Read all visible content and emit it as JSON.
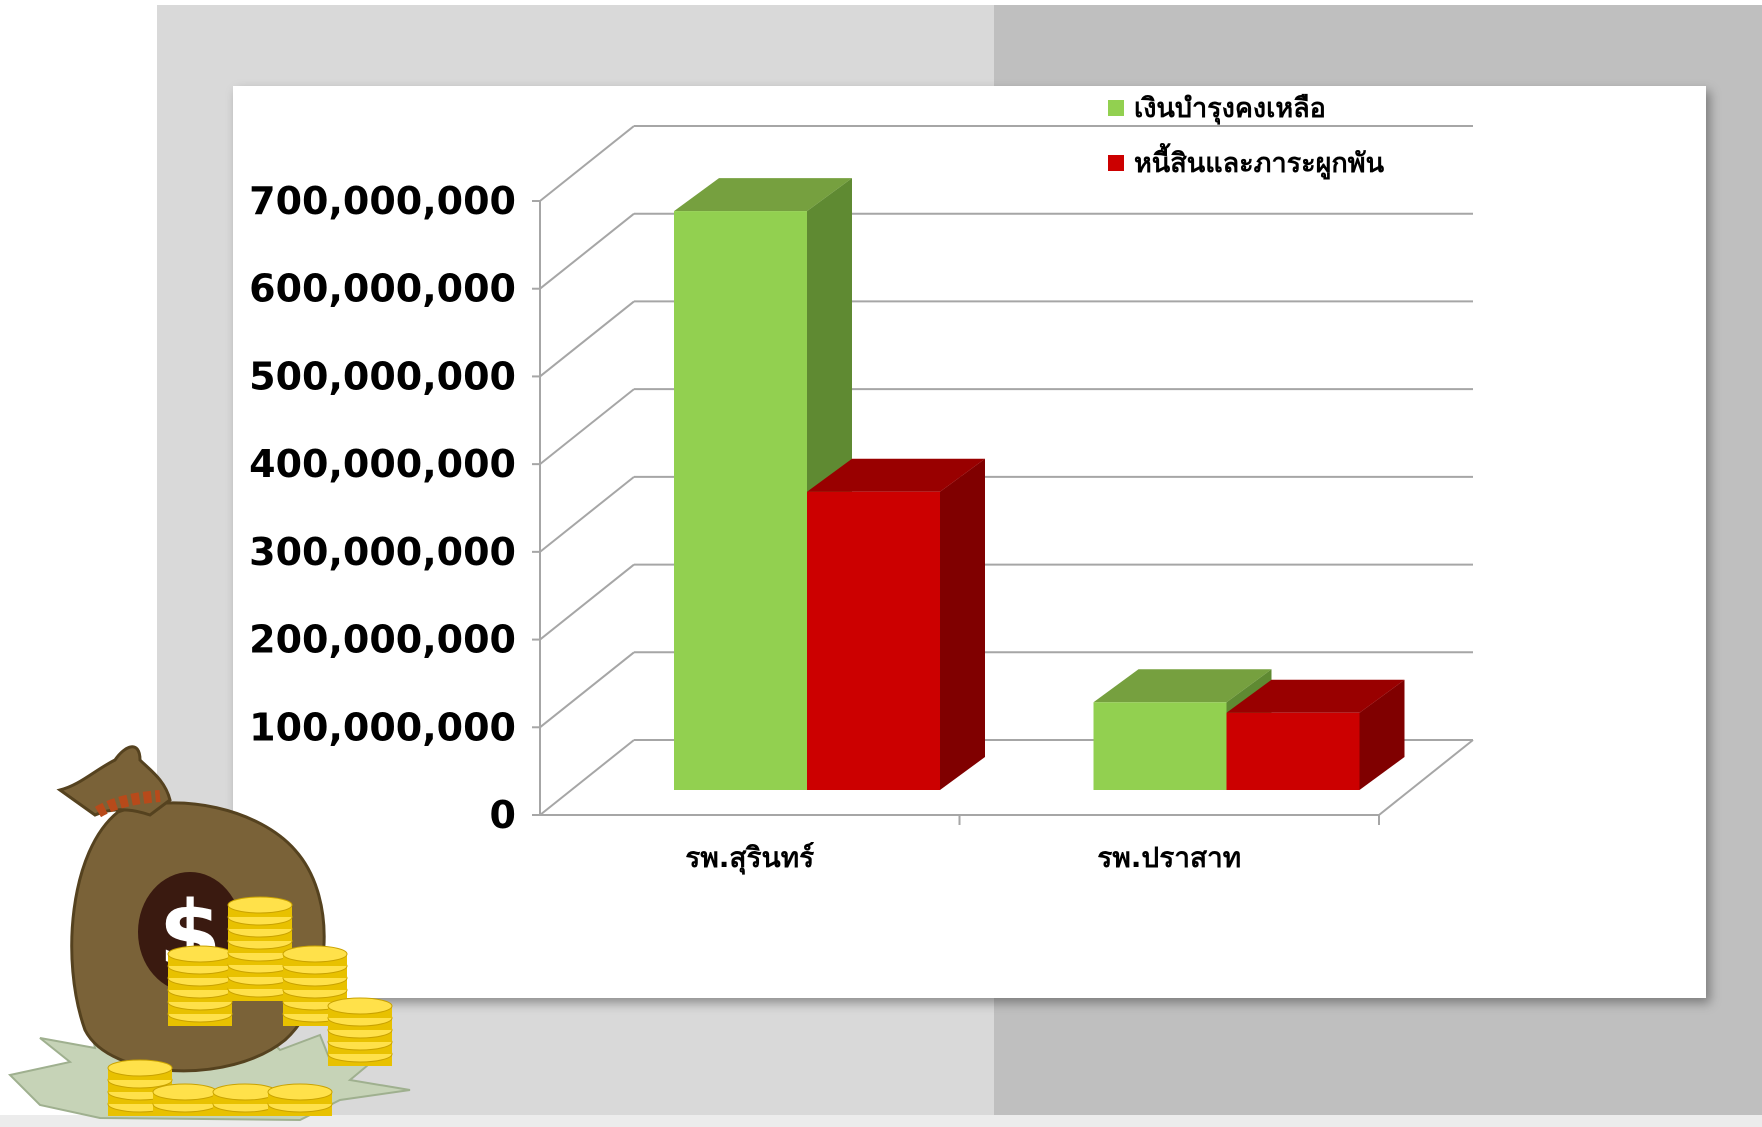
{
  "chart_data": {
    "type": "bar",
    "style": "3d-clustered-column",
    "categories": [
      "รพ.สุรินทร์",
      "รพ.ปราสาท"
    ],
    "series": [
      {
        "name": "เงินบำรุงคงเหลือ",
        "values": [
          660000000,
          100000000
        ],
        "color": "#92d050",
        "top_color": "#76a03f",
        "side_color": "#5f8a32"
      },
      {
        "name": "หนี้สินและภาระผูกพัน",
        "values": [
          340000000,
          88000000
        ],
        "color": "#cc0000",
        "top_color": "#990000",
        "side_color": "#800000"
      }
    ],
    "y_ticks": [
      "0",
      "100,000,000",
      "200,000,000",
      "300,000,000",
      "400,000,000",
      "500,000,000",
      "600,000,000",
      "700,000,000"
    ],
    "ylim": [
      0,
      700000000
    ],
    "grid": true,
    "legend_position": "top-right",
    "title": "",
    "xlabel": "",
    "ylabel": ""
  },
  "colors": {
    "background_left": "#d9d9d9",
    "background_right": "#bfbfbf",
    "gridline": "#a6a6a6"
  },
  "decoration": {
    "icon": "money-bag-with-coins-icon"
  }
}
